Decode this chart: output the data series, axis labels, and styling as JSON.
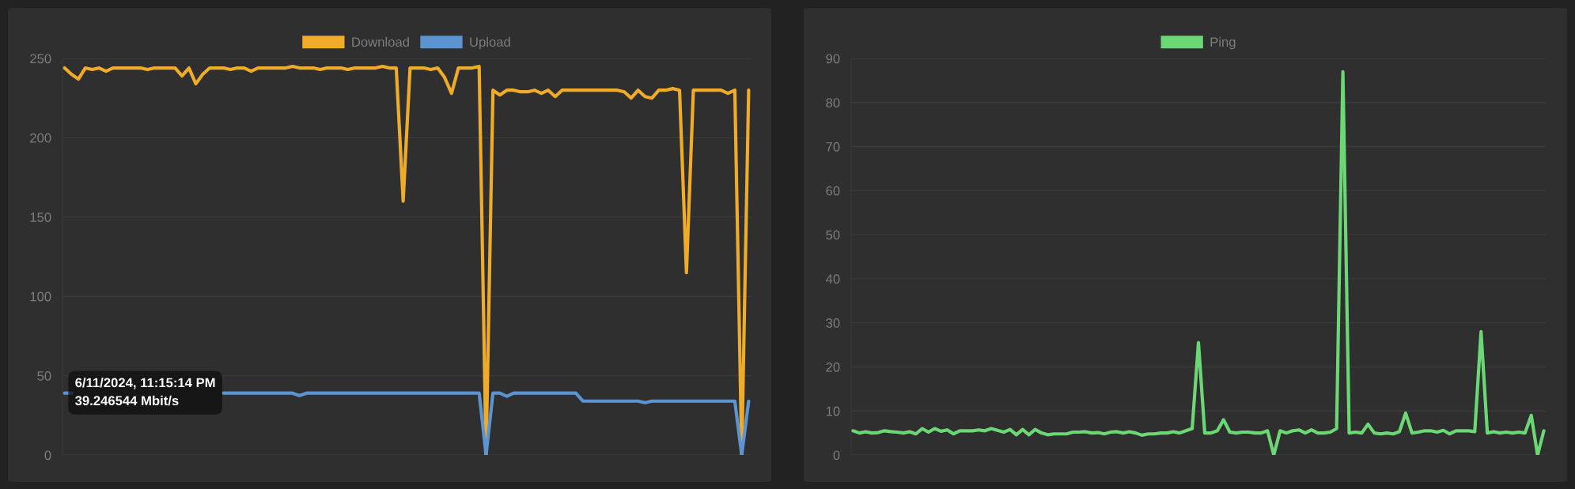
{
  "chart_data": [
    {
      "type": "line",
      "categories": [
        null,
        null,
        null,
        null,
        null,
        null,
        null,
        null,
        null,
        null,
        null,
        null,
        null,
        null,
        null,
        null,
        null,
        null,
        null,
        null,
        null,
        null,
        null,
        null,
        null,
        null,
        null,
        null,
        null,
        null,
        null,
        null,
        null,
        null,
        null,
        null,
        null,
        null,
        null,
        null,
        null,
        null,
        null,
        null,
        null,
        null,
        null,
        null,
        null,
        null,
        null,
        null,
        null,
        null,
        null,
        null,
        null,
        null,
        null,
        null,
        null,
        null,
        null,
        null,
        null,
        null,
        null,
        null,
        null,
        null,
        null,
        null,
        null,
        null,
        null,
        null,
        null,
        null,
        null,
        null,
        null,
        null,
        null,
        null,
        null,
        null,
        null,
        null,
        null,
        null,
        null,
        null,
        null,
        null,
        null,
        null,
        null,
        null,
        null,
        null
      ],
      "series": [
        {
          "name": "Download",
          "color": "#eeac2a",
          "values": [
            244,
            240,
            237,
            244,
            243,
            244,
            242,
            244,
            244,
            244,
            244,
            244,
            243,
            244,
            244,
            244,
            244,
            239,
            244,
            234,
            240,
            244,
            244,
            244,
            243,
            244,
            244,
            242,
            244,
            244,
            244,
            244,
            244,
            245,
            244,
            244,
            244,
            243,
            244,
            244,
            244,
            243,
            244,
            244,
            244,
            244,
            245,
            244,
            244,
            160,
            244,
            244,
            244,
            243,
            244,
            238,
            228,
            244,
            244,
            244,
            245,
            0,
            230,
            227,
            230,
            230,
            229,
            229,
            230,
            228,
            230,
            226,
            230,
            230,
            230,
            230,
            230,
            230,
            230,
            230,
            230,
            229,
            225,
            230,
            226,
            225,
            230,
            230,
            231,
            230,
            115,
            230,
            230,
            230,
            230,
            230,
            228,
            230,
            0,
            230
          ]
        },
        {
          "name": "Upload",
          "color": "#5c94d2",
          "values": [
            39,
            39,
            null,
            null,
            null,
            null,
            null,
            null,
            null,
            null,
            null,
            null,
            null,
            null,
            null,
            null,
            null,
            null,
            null,
            null,
            null,
            null,
            null,
            39,
            39,
            39,
            39,
            39,
            39,
            39,
            39,
            39,
            39,
            39,
            37.5,
            39,
            39,
            39,
            39,
            39,
            39,
            39,
            39,
            39,
            39,
            39,
            39,
            39,
            39,
            39,
            39,
            39,
            39,
            39,
            39,
            39,
            39,
            39,
            39,
            39,
            39,
            0,
            39,
            39,
            37,
            39,
            39,
            39,
            39,
            39,
            39,
            39,
            39,
            39,
            39,
            34,
            34,
            34,
            34,
            34,
            34,
            34,
            34,
            34,
            33,
            34,
            34,
            34,
            34,
            34,
            34,
            34,
            34,
            34,
            34,
            34,
            34,
            34,
            0,
            34
          ]
        }
      ],
      "ylim": [
        0,
        250
      ],
      "yticks": [
        0,
        50,
        100,
        150,
        200,
        250
      ],
      "grid": "y",
      "legend": "top",
      "marker": "none",
      "line_style": "solid",
      "annotations": [
        "6/11/2024, 11:15:14 PM\n39.246544 Mbit/s"
      ]
    },
    {
      "type": "line",
      "categories": [
        null,
        null,
        null,
        null,
        null,
        null,
        null,
        null,
        null,
        null,
        null,
        null,
        null,
        null,
        null,
        null,
        null,
        null,
        null,
        null,
        null,
        null,
        null,
        null,
        null,
        null,
        null,
        null,
        null,
        null,
        null,
        null,
        null,
        null,
        null,
        null,
        null,
        null,
        null,
        null,
        null,
        null,
        null,
        null,
        null,
        null,
        null,
        null,
        null,
        null,
        null,
        null,
        null,
        null,
        null,
        null,
        null,
        null,
        null,
        null,
        null,
        null,
        null,
        null,
        null,
        null,
        null,
        null,
        null,
        null,
        null,
        null,
        null,
        null,
        null,
        null,
        null,
        null,
        null,
        null,
        null,
        null,
        null,
        null,
        null,
        null,
        null,
        null,
        null,
        null,
        null,
        null,
        null,
        null,
        null,
        null,
        null,
        null,
        null,
        null,
        null,
        null,
        null,
        null,
        null,
        null,
        null,
        null,
        null,
        null,
        null
      ],
      "series": [
        {
          "name": "Ping",
          "color": "#6bd875",
          "values": [
            5.5,
            5,
            5.3,
            5,
            5.1,
            5.5,
            5.3,
            5.2,
            5,
            5.3,
            4.8,
            6,
            5.2,
            6,
            5.4,
            5.7,
            4.8,
            5.5,
            5.5,
            5.5,
            5.7,
            5.5,
            6,
            5.6,
            5.2,
            5.8,
            4.6,
            5.8,
            4.6,
            5.8,
            5,
            4.6,
            4.8,
            4.8,
            4.8,
            5.2,
            5.2,
            5.3,
            5,
            5.1,
            4.8,
            5.2,
            5.3,
            5,
            5.3,
            5,
            4.5,
            4.8,
            4.8,
            5,
            5,
            5.3,
            5,
            5.5,
            6,
            25.5,
            5,
            5,
            5.5,
            8,
            5.2,
            5,
            5.2,
            5.2,
            5,
            5,
            5.5,
            0,
            5.5,
            5,
            5.5,
            5.7,
            5,
            5.7,
            5,
            5,
            5.2,
            6,
            87,
            5,
            5.2,
            5,
            7,
            5,
            4.8,
            5,
            4.8,
            5.3,
            9.5,
            5,
            5.2,
            5.5,
            5.5,
            5.2,
            5.6,
            4.8,
            5.5,
            5.5,
            5.5,
            5.3,
            28,
            5,
            5.3,
            5,
            5.2,
            5,
            5.2,
            5,
            9,
            0,
            5.5
          ]
        }
      ],
      "ylim": [
        0,
        90
      ],
      "yticks": [
        0,
        10,
        20,
        30,
        40,
        50,
        60,
        70,
        80,
        90
      ],
      "grid": "y",
      "legend": "top",
      "marker": "none",
      "line_style": "solid"
    }
  ]
}
